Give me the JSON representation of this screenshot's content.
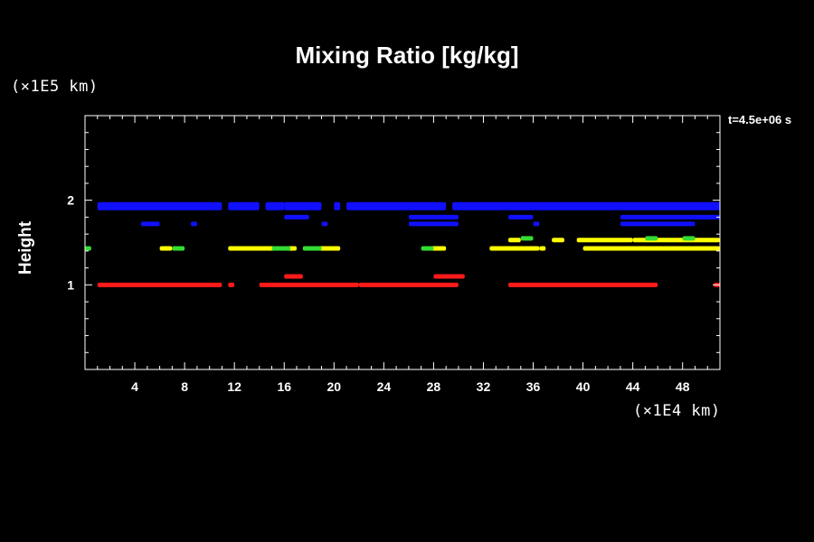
{
  "title": "Mixing Ratio [kg/kg]",
  "y_unit": "(×1E5 km)",
  "x_unit": "(×1E4 km)",
  "time_label": "t=4.5e+06 s",
  "ylabel": "Height",
  "colors": {
    "background": "#000000",
    "axes": "#ffffff",
    "red": "#ff1a1a",
    "yellow": "#ffff00",
    "green": "#33dd33",
    "blue": "#1010ff"
  },
  "chart_data": {
    "type": "heatmap",
    "title": "Mixing Ratio [kg/kg]",
    "xlabel": "",
    "ylabel": "Height",
    "xlim": [
      0,
      51
    ],
    "ylim": [
      0,
      3
    ],
    "x_ticks": [
      4,
      8,
      12,
      16,
      20,
      24,
      28,
      32,
      36,
      40,
      44,
      48
    ],
    "y_ticks": [
      1,
      2
    ],
    "layers": [
      {
        "color": "blue",
        "height": 1.93,
        "segments": [
          [
            1,
            11
          ],
          [
            11.5,
            14
          ],
          [
            14.5,
            16
          ],
          [
            16,
            19
          ],
          [
            20,
            20.5
          ],
          [
            21,
            29
          ],
          [
            29.5,
            51
          ]
        ]
      },
      {
        "color": "blue",
        "height": 1.8,
        "segments": [
          [
            16,
            18
          ],
          [
            26,
            30
          ],
          [
            34,
            36
          ],
          [
            43,
            51
          ]
        ]
      },
      {
        "color": "blue",
        "height": 1.72,
        "segments": [
          [
            4.5,
            6
          ],
          [
            8.5,
            9
          ],
          [
            19,
            19.5
          ],
          [
            26,
            30
          ],
          [
            36,
            36.5
          ],
          [
            43,
            49
          ]
        ]
      },
      {
        "color": "yellow",
        "height": 1.43,
        "segments": [
          [
            6,
            7
          ],
          [
            11.5,
            17
          ],
          [
            17.5,
            20.5
          ],
          [
            27.5,
            29
          ],
          [
            32.5,
            36.5
          ],
          [
            36.5,
            37
          ],
          [
            40,
            42
          ],
          [
            41.5,
            51
          ]
        ]
      },
      {
        "color": "green",
        "height": 1.43,
        "segments": [
          [
            0,
            0.5
          ],
          [
            7,
            8
          ],
          [
            15,
            16.5
          ],
          [
            17.5,
            19
          ],
          [
            27,
            28
          ]
        ]
      },
      {
        "color": "yellow",
        "height": 1.53,
        "segments": [
          [
            34,
            35
          ],
          [
            37.5,
            38.5
          ],
          [
            39.5,
            44
          ],
          [
            44,
            51
          ]
        ]
      },
      {
        "color": "green",
        "height": 1.55,
        "segments": [
          [
            35,
            36
          ],
          [
            45,
            46
          ],
          [
            48,
            49
          ]
        ]
      },
      {
        "color": "red",
        "height": 1.0,
        "segments": [
          [
            1,
            11
          ],
          [
            11.5,
            12
          ],
          [
            14,
            22
          ],
          [
            22,
            30
          ],
          [
            34,
            46
          ],
          [
            50.5,
            51
          ]
        ]
      },
      {
        "color": "red",
        "height": 1.1,
        "segments": [
          [
            16,
            17.5
          ],
          [
            28,
            30.5
          ]
        ]
      }
    ]
  }
}
